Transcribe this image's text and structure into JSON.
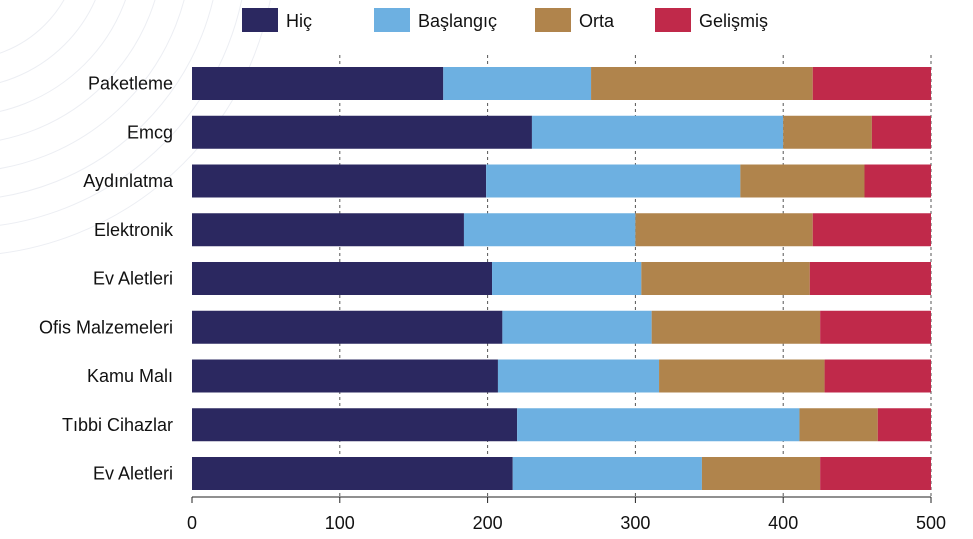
{
  "chart_data": {
    "type": "bar",
    "orientation": "horizontal",
    "stacked": true,
    "categories": [
      "Paketleme",
      "Emcg",
      "Aydınlatma",
      "Elektronik",
      "Ev Aletleri",
      "Ofis Malzemeleri",
      "Kamu Malı",
      "Tıbbi Cihazlar",
      "Ev Aletleri"
    ],
    "series": [
      {
        "name": "Hiç",
        "color": "#2b2860",
        "values": [
          170,
          230,
          199,
          184,
          203,
          210,
          207,
          220,
          217
        ]
      },
      {
        "name": "Başlangıç",
        "color": "#6db0e1",
        "values": [
          100,
          170,
          172,
          116,
          101,
          101,
          109,
          191,
          128
        ]
      },
      {
        "name": "Orta",
        "color": "#b0844c",
        "values": [
          150,
          60,
          84,
          120,
          114,
          114,
          112,
          53,
          80
        ]
      },
      {
        "name": "Gelişmiş",
        "color": "#c0294a",
        "values": [
          80,
          40,
          45,
          80,
          82,
          75,
          72,
          36,
          75
        ]
      }
    ],
    "xlim": [
      0,
      500
    ],
    "xticks": [
      0,
      100,
      200,
      300,
      400,
      500
    ],
    "grid": "vertical-dashed",
    "legend_position": "top",
    "title": "",
    "xlabel": "",
    "ylabel": ""
  }
}
